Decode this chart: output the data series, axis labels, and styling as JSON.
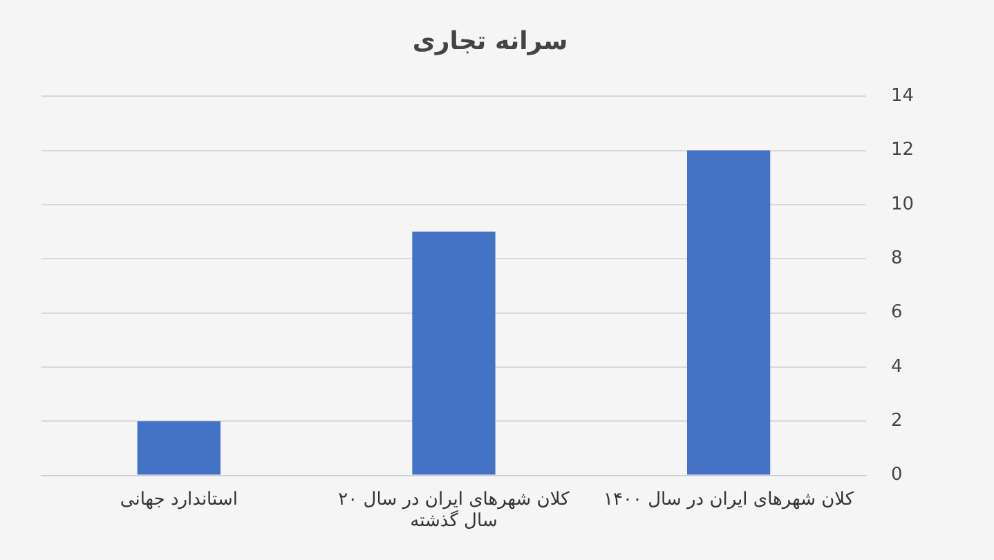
{
  "chart_data": {
    "type": "bar",
    "title": "سرانه تجاری",
    "categories": [
      "استاندارد جهانی",
      "کلان شهرهای ایران در سال ۲۰ سال گذشته",
      "کلان شهرهای ایران در سال ۱۴۰۰"
    ],
    "values": [
      2,
      9,
      12
    ],
    "color": "#4472c4",
    "ylim": [
      0,
      14
    ],
    "yticks": [
      0,
      2,
      4,
      6,
      8,
      10,
      12,
      14
    ],
    "grid": "y",
    "legend": false
  }
}
